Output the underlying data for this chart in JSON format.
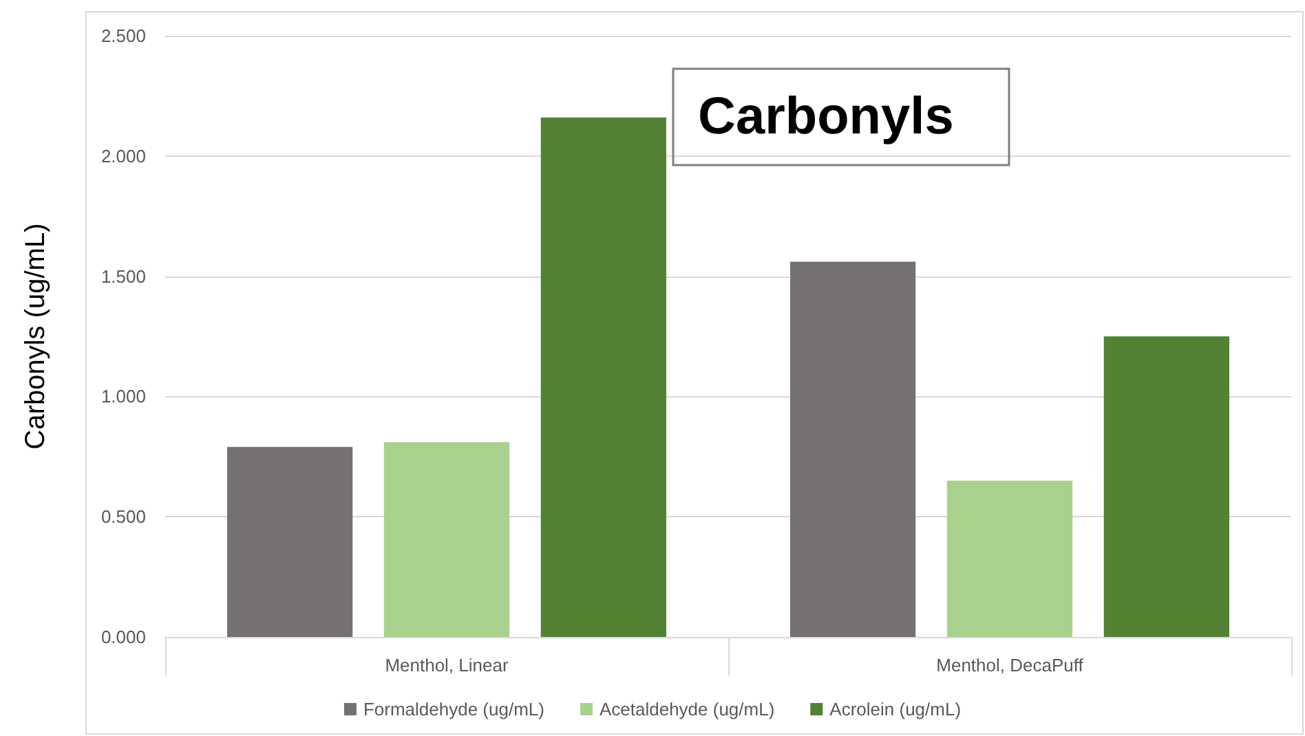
{
  "chart_data": {
    "type": "bar",
    "title": "Carbonyls",
    "ylabel": "Carbonyls (ug/mL)",
    "categories": [
      "Menthol, Linear",
      "Menthol, DecaPuff"
    ],
    "series": [
      {
        "name": "Formaldehyde (ug/mL)",
        "color": "#767171",
        "values": [
          0.79,
          1.56
        ]
      },
      {
        "name": "Acetaldehyde (ug/mL)",
        "color": "#a9d18e",
        "values": [
          0.81,
          0.65
        ]
      },
      {
        "name": "Acrolein (ug/mL)",
        "color": "#548235",
        "values": [
          2.16,
          1.25
        ]
      }
    ],
    "ylim": [
      0,
      2.5
    ],
    "yticks": [
      {
        "value": 0,
        "label": "0.000"
      },
      {
        "value": 0.5,
        "label": "0.500"
      },
      {
        "value": 1,
        "label": "1.000"
      },
      {
        "value": 1.5,
        "label": "1.500"
      },
      {
        "value": 2,
        "label": "2.000"
      },
      {
        "value": 2.5,
        "label": "2.500"
      }
    ],
    "grid": "y",
    "legend": "bottom"
  }
}
